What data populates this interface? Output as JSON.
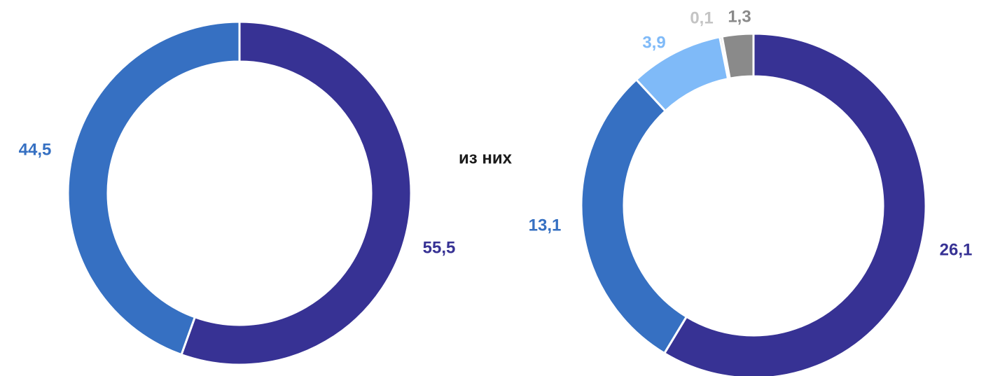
{
  "chart_data": [
    {
      "type": "donut",
      "values": [
        55.5,
        44.5
      ],
      "value_labels": [
        "55,5",
        "44,5"
      ],
      "colors": [
        "#373294",
        "#3670c2"
      ]
    },
    {
      "type": "donut",
      "values": [
        26.1,
        13.1,
        3.9,
        0.1,
        1.3
      ],
      "value_labels": [
        "26,1",
        "13,1",
        "3,9",
        "0,1",
        "1,3"
      ],
      "colors": [
        "#373294",
        "#3670c2",
        "#7fbaf8",
        "#c4c4c4",
        "#8a8a8a"
      ]
    }
  ],
  "annotation": "из них"
}
